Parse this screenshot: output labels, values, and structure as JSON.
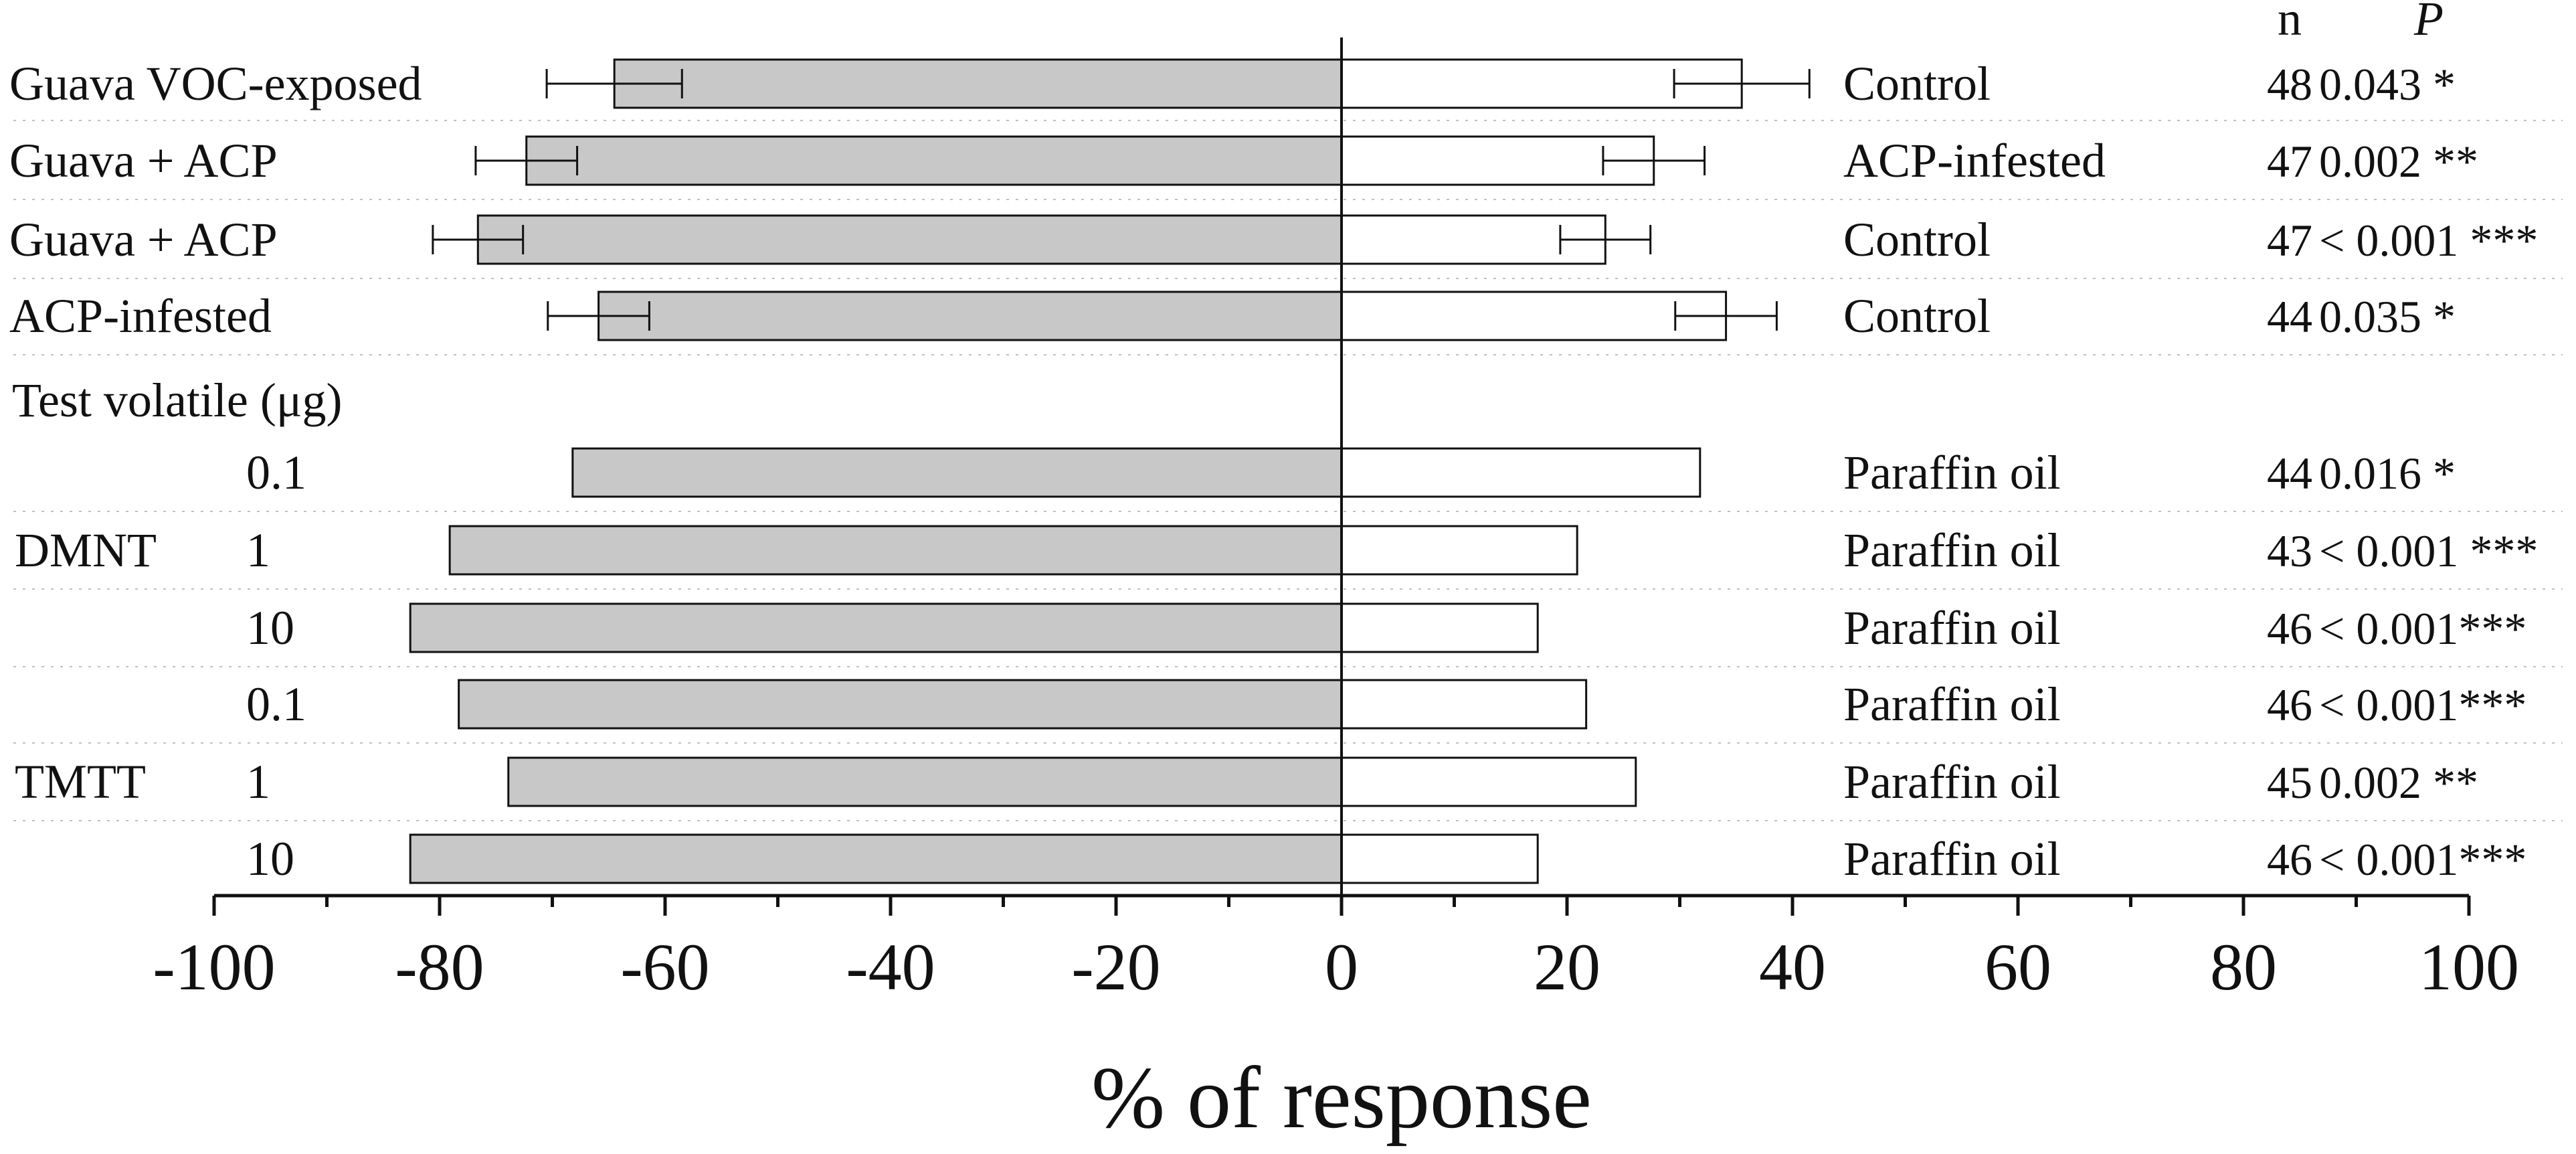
{
  "chart_data": {
    "type": "bar",
    "orientation": "horizontal diverging",
    "xlabel": "% of response",
    "xlim": [
      -100,
      100
    ],
    "xticks": [
      "-100",
      "-80",
      "-60",
      "-40",
      "-20",
      "0",
      "20",
      "40",
      "60",
      "80",
      "100"
    ],
    "grid": "dotted horizontal separators between rows",
    "header": {
      "n": "n",
      "p": "P"
    },
    "section_label": "Test volatile  (μg)",
    "groups": [
      {
        "label": "DMNT",
        "first_row": 4,
        "last_row": 6
      },
      {
        "label": "TMTT",
        "first_row": 7,
        "last_row": 9
      }
    ],
    "rows": [
      {
        "left_label": "Guava VOC-exposed",
        "left_value": -64.5,
        "left_err": 6,
        "right_label": "Control",
        "right_value": 35.5,
        "right_err": 6,
        "n": "48",
        "p": "0.043 *"
      },
      {
        "left_label": "Guava + ACP",
        "left_value": -72.3,
        "left_err": 4.5,
        "right_label": "ACP-infested",
        "right_value": 27.7,
        "right_err": 4.5,
        "n": "47",
        "p": "0.002 **"
      },
      {
        "left_label": "Guava + ACP",
        "left_value": -76.6,
        "left_err": 4,
        "right_label": "Control",
        "right_value": 23.4,
        "right_err": 4,
        "n": "47",
        "p": "< 0.001 ***"
      },
      {
        "left_label": "ACP-infested",
        "left_value": -65.9,
        "left_err": 4.5,
        "right_label": "Control",
        "right_value": 34.1,
        "right_err": 4.5,
        "n": "44",
        "p": "0.035 *"
      },
      {
        "left_label": "0.1",
        "left_value": -68.2,
        "right_label": "Paraffin oil",
        "right_value": 31.8,
        "n": "44",
        "p": "0.016 *"
      },
      {
        "left_label": "1",
        "left_value": -79.1,
        "right_label": "Paraffin oil",
        "right_value": 20.9,
        "n": "43",
        "p": "< 0.001 ***"
      },
      {
        "left_label": "10",
        "left_value": -82.6,
        "right_label": "Paraffin oil",
        "right_value": 17.4,
        "n": "46",
        "p": "< 0.001***"
      },
      {
        "left_label": "0.1",
        "left_value": -78.3,
        "right_label": "Paraffin oil",
        "right_value": 21.7,
        "n": "46",
        "p": "< 0.001***"
      },
      {
        "left_label": "1",
        "left_value": -73.9,
        "right_label": "Paraffin oil",
        "right_value": 26.1,
        "n": "45",
        "p": "0.002 **"
      },
      {
        "left_label": "10",
        "left_value": -82.6,
        "right_label": "Paraffin oil",
        "right_value": 17.4,
        "n": "46",
        "p": "< 0.001***"
      }
    ],
    "colors": {
      "left_bar": "#c8c8c8",
      "right_bar": "#ffffff",
      "edge": "#111111",
      "grid": "#c0c0c0"
    }
  }
}
